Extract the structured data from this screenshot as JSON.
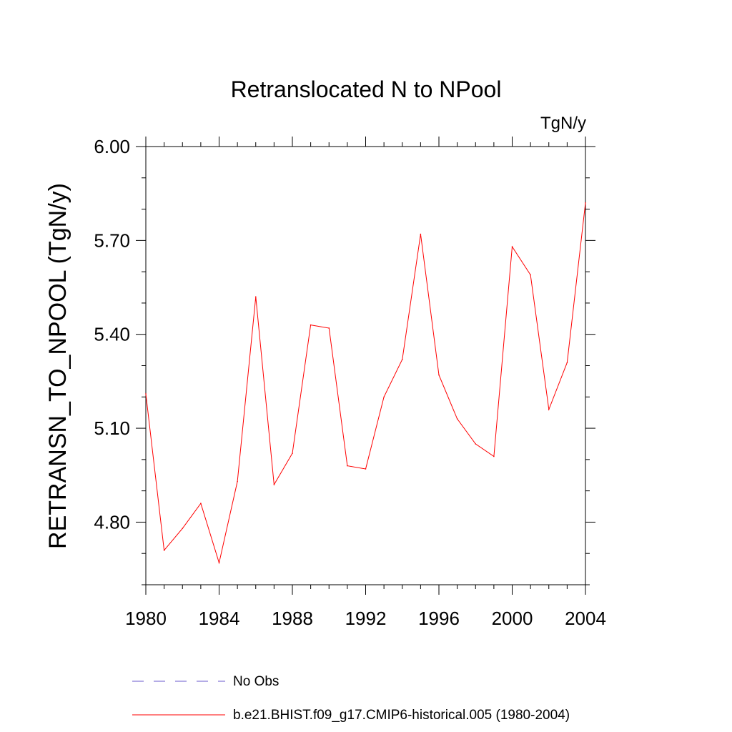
{
  "chart_data": {
    "type": "line",
    "title": "Retranslocated N to NPool",
    "units_label": "TgN/y",
    "ylabel": "RETRANSN_TO_NPOOL  (TgN/y)",
    "xlabel": "",
    "xlim": [
      1980,
      2004
    ],
    "ylim": [
      4.6,
      6.0
    ],
    "x_ticks": [
      1980,
      1984,
      1988,
      1992,
      1996,
      2000,
      2004
    ],
    "x_tick_labels": [
      "1980",
      "1984",
      "1988",
      "1992",
      "1996",
      "2000",
      "2004"
    ],
    "y_ticks": [
      4.8,
      5.1,
      5.4,
      5.7,
      6.0
    ],
    "y_tick_labels": [
      "4.80",
      "5.10",
      "5.40",
      "5.70",
      "6.00"
    ],
    "y_minor_step": 0.1,
    "x_minor_step": 1,
    "grid": false,
    "legend_position": "bottom",
    "series": [
      {
        "name": "b.e21.BHIST.f09_g17.CMIP6-historical.005 (1980-2004)",
        "color": "#ff0000",
        "style": "solid",
        "x": [
          1980,
          1981,
          1982,
          1983,
          1984,
          1985,
          1986,
          1987,
          1988,
          1989,
          1990,
          1991,
          1992,
          1993,
          1994,
          1995,
          1996,
          1997,
          1998,
          1999,
          2000,
          2001,
          2002,
          2003,
          2004
        ],
        "values": [
          5.21,
          4.71,
          4.78,
          4.86,
          4.67,
          4.93,
          5.52,
          4.92,
          5.02,
          5.43,
          5.42,
          4.98,
          4.97,
          5.2,
          5.32,
          5.72,
          5.27,
          5.13,
          5.05,
          5.01,
          5.68,
          5.59,
          5.16,
          5.31,
          5.82
        ]
      }
    ],
    "legend": [
      {
        "label": "No Obs",
        "color": "#6a5acd",
        "style": "dashed"
      },
      {
        "label": "b.e21.BHIST.f09_g17.CMIP6-historical.005 (1980-2004)",
        "color": "#ff0000",
        "style": "solid"
      }
    ]
  }
}
